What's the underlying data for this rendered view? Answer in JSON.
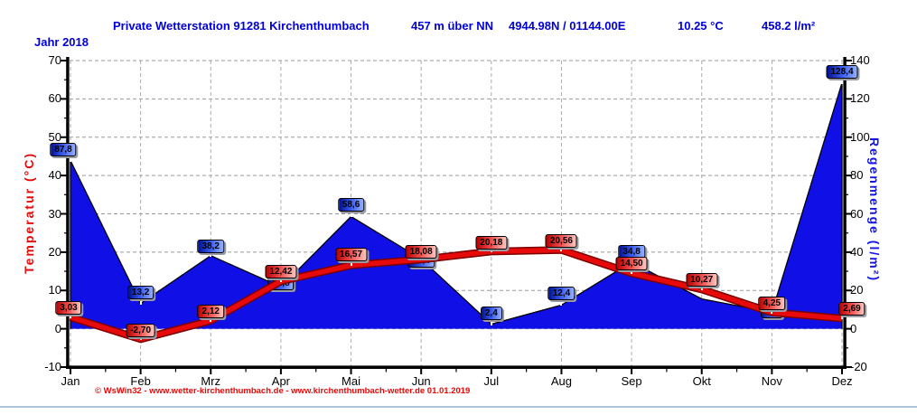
{
  "header": {
    "station": "Private Wetterstation 91281 Kirchenthumbach",
    "altitude": "457 m über NN",
    "coordinates": "4944.98N / 01144.00E",
    "year_avg_temp": "10.25 °C",
    "year_total_rain": "458.2 l/m²"
  },
  "year_label": "Jahr 2018",
  "footer": "© WsWin32 - www.wetter-kirchenthumbach.de - www.kirchenthumbach-wetter.de  01.01.2019",
  "colors": {
    "header_blue": "#0000d8",
    "temp_red": "#e60a0a",
    "temp_line_edge": "#7d0000",
    "rain_blue_fill": "#1010e6",
    "rain_axis_blue": "#1414e6",
    "grid_gray": "#999999",
    "footer_red": "#e00000"
  },
  "chart_data": {
    "type": "area+line",
    "categories": [
      "Jan",
      "Feb",
      "Mrz",
      "Apr",
      "Mai",
      "Jun",
      "Jul",
      "Aug",
      "Sep",
      "Okt",
      "Nov",
      "Dez"
    ],
    "left_axis": {
      "title": "Temperatur  (°C)",
      "min": -10,
      "max": 70,
      "tick_step": 10
    },
    "right_axis": {
      "title": "Regenmenge  (l/m²)",
      "min": -20,
      "max": 140,
      "tick_step": 20
    },
    "grid": "dashed",
    "series": [
      {
        "name": "Regenmenge",
        "type": "area",
        "axis": "right",
        "values": [
          87.8,
          13.2,
          38.2,
          21.8,
          58.6,
          36.4,
          2.4,
          12.4,
          34.8,
          15.6,
          8.6,
          128.4
        ],
        "labels": [
          "87,8",
          "13,2",
          "38,2",
          "21,8",
          "58,6",
          "36,4",
          "2,4",
          "12,4",
          "34,8",
          null,
          "8,6",
          "128,4"
        ],
        "label_dx": [
          -8,
          0,
          0,
          0,
          0,
          0,
          0,
          0,
          0,
          0,
          0,
          0
        ],
        "label_dy": [
          -20,
          -20,
          -18,
          -11,
          -20,
          -6,
          -20,
          -20,
          -19,
          null,
          -8,
          -20
        ]
      },
      {
        "name": "Temperatur",
        "type": "line",
        "axis": "left",
        "values": [
          3.03,
          -2.7,
          2.12,
          12.42,
          16.57,
          18.08,
          20.18,
          20.56,
          14.5,
          10.27,
          4.25,
          2.69
        ],
        "labels": [
          "3,03",
          "-2,70",
          "2,12",
          "12,42",
          "16,57",
          "18,08",
          "20,18",
          "20,56",
          "14,50",
          "10,27",
          "4,25",
          "2,69"
        ],
        "label_dx": [
          -2,
          0,
          0,
          0,
          0,
          0,
          0,
          0,
          0,
          0,
          0,
          11
        ],
        "label_dy": [
          -18,
          -17,
          -18,
          -18,
          -19,
          -16,
          -17,
          -18,
          -18,
          -18,
          -18,
          -18
        ]
      }
    ]
  }
}
